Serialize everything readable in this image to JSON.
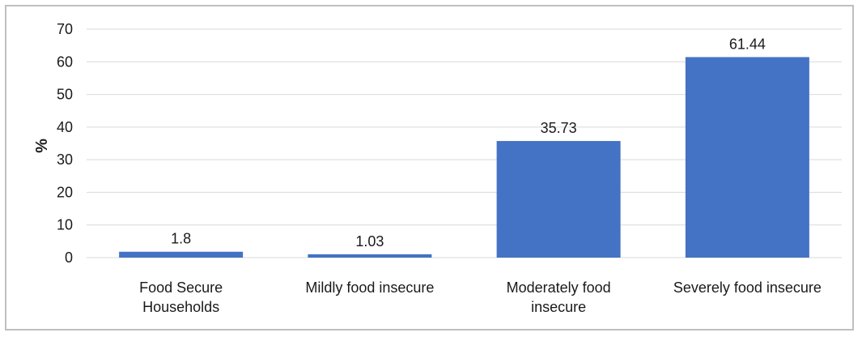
{
  "chart_data": {
    "type": "bar",
    "title": "",
    "xlabel": "",
    "ylabel": "%",
    "ylim": [
      0,
      70
    ],
    "yticks": [
      0,
      10,
      20,
      30,
      40,
      50,
      60,
      70
    ],
    "grid": true,
    "legend": "none",
    "categories": [
      [
        "Food Secure",
        "Households"
      ],
      [
        "Mildly food insecure"
      ],
      [
        "Moderately food",
        "insecure"
      ],
      [
        "Severely food insecure"
      ]
    ],
    "values": [
      1.8,
      1.03,
      35.73,
      61.44
    ],
    "data_labels": [
      "1.8",
      "1.03",
      "35.73",
      "61.44"
    ],
    "bar_color": "#4472c4",
    "grid_color": "#d9d9d9"
  }
}
